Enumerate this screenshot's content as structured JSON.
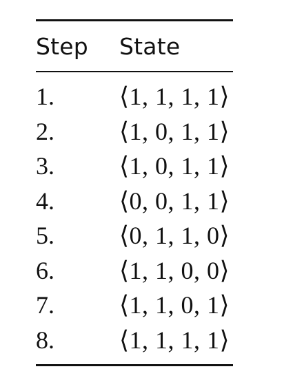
{
  "table": {
    "headers": {
      "step": "Step",
      "state": "State"
    },
    "rows": [
      {
        "step": "1.",
        "state": "⟨1, 1, 1, 1⟩"
      },
      {
        "step": "2.",
        "state": "⟨1, 0, 1, 1⟩"
      },
      {
        "step": "3.",
        "state": "⟨1, 0, 1, 1⟩"
      },
      {
        "step": "4.",
        "state": "⟨0, 0, 1, 1⟩"
      },
      {
        "step": "5.",
        "state": "⟨0, 1, 1, 0⟩"
      },
      {
        "step": "6.",
        "state": "⟨1, 1, 0, 0⟩"
      },
      {
        "step": "7.",
        "state": "⟨1, 1, 0, 1⟩"
      },
      {
        "step": "8.",
        "state": "⟨1, 1, 1, 1⟩"
      }
    ]
  }
}
